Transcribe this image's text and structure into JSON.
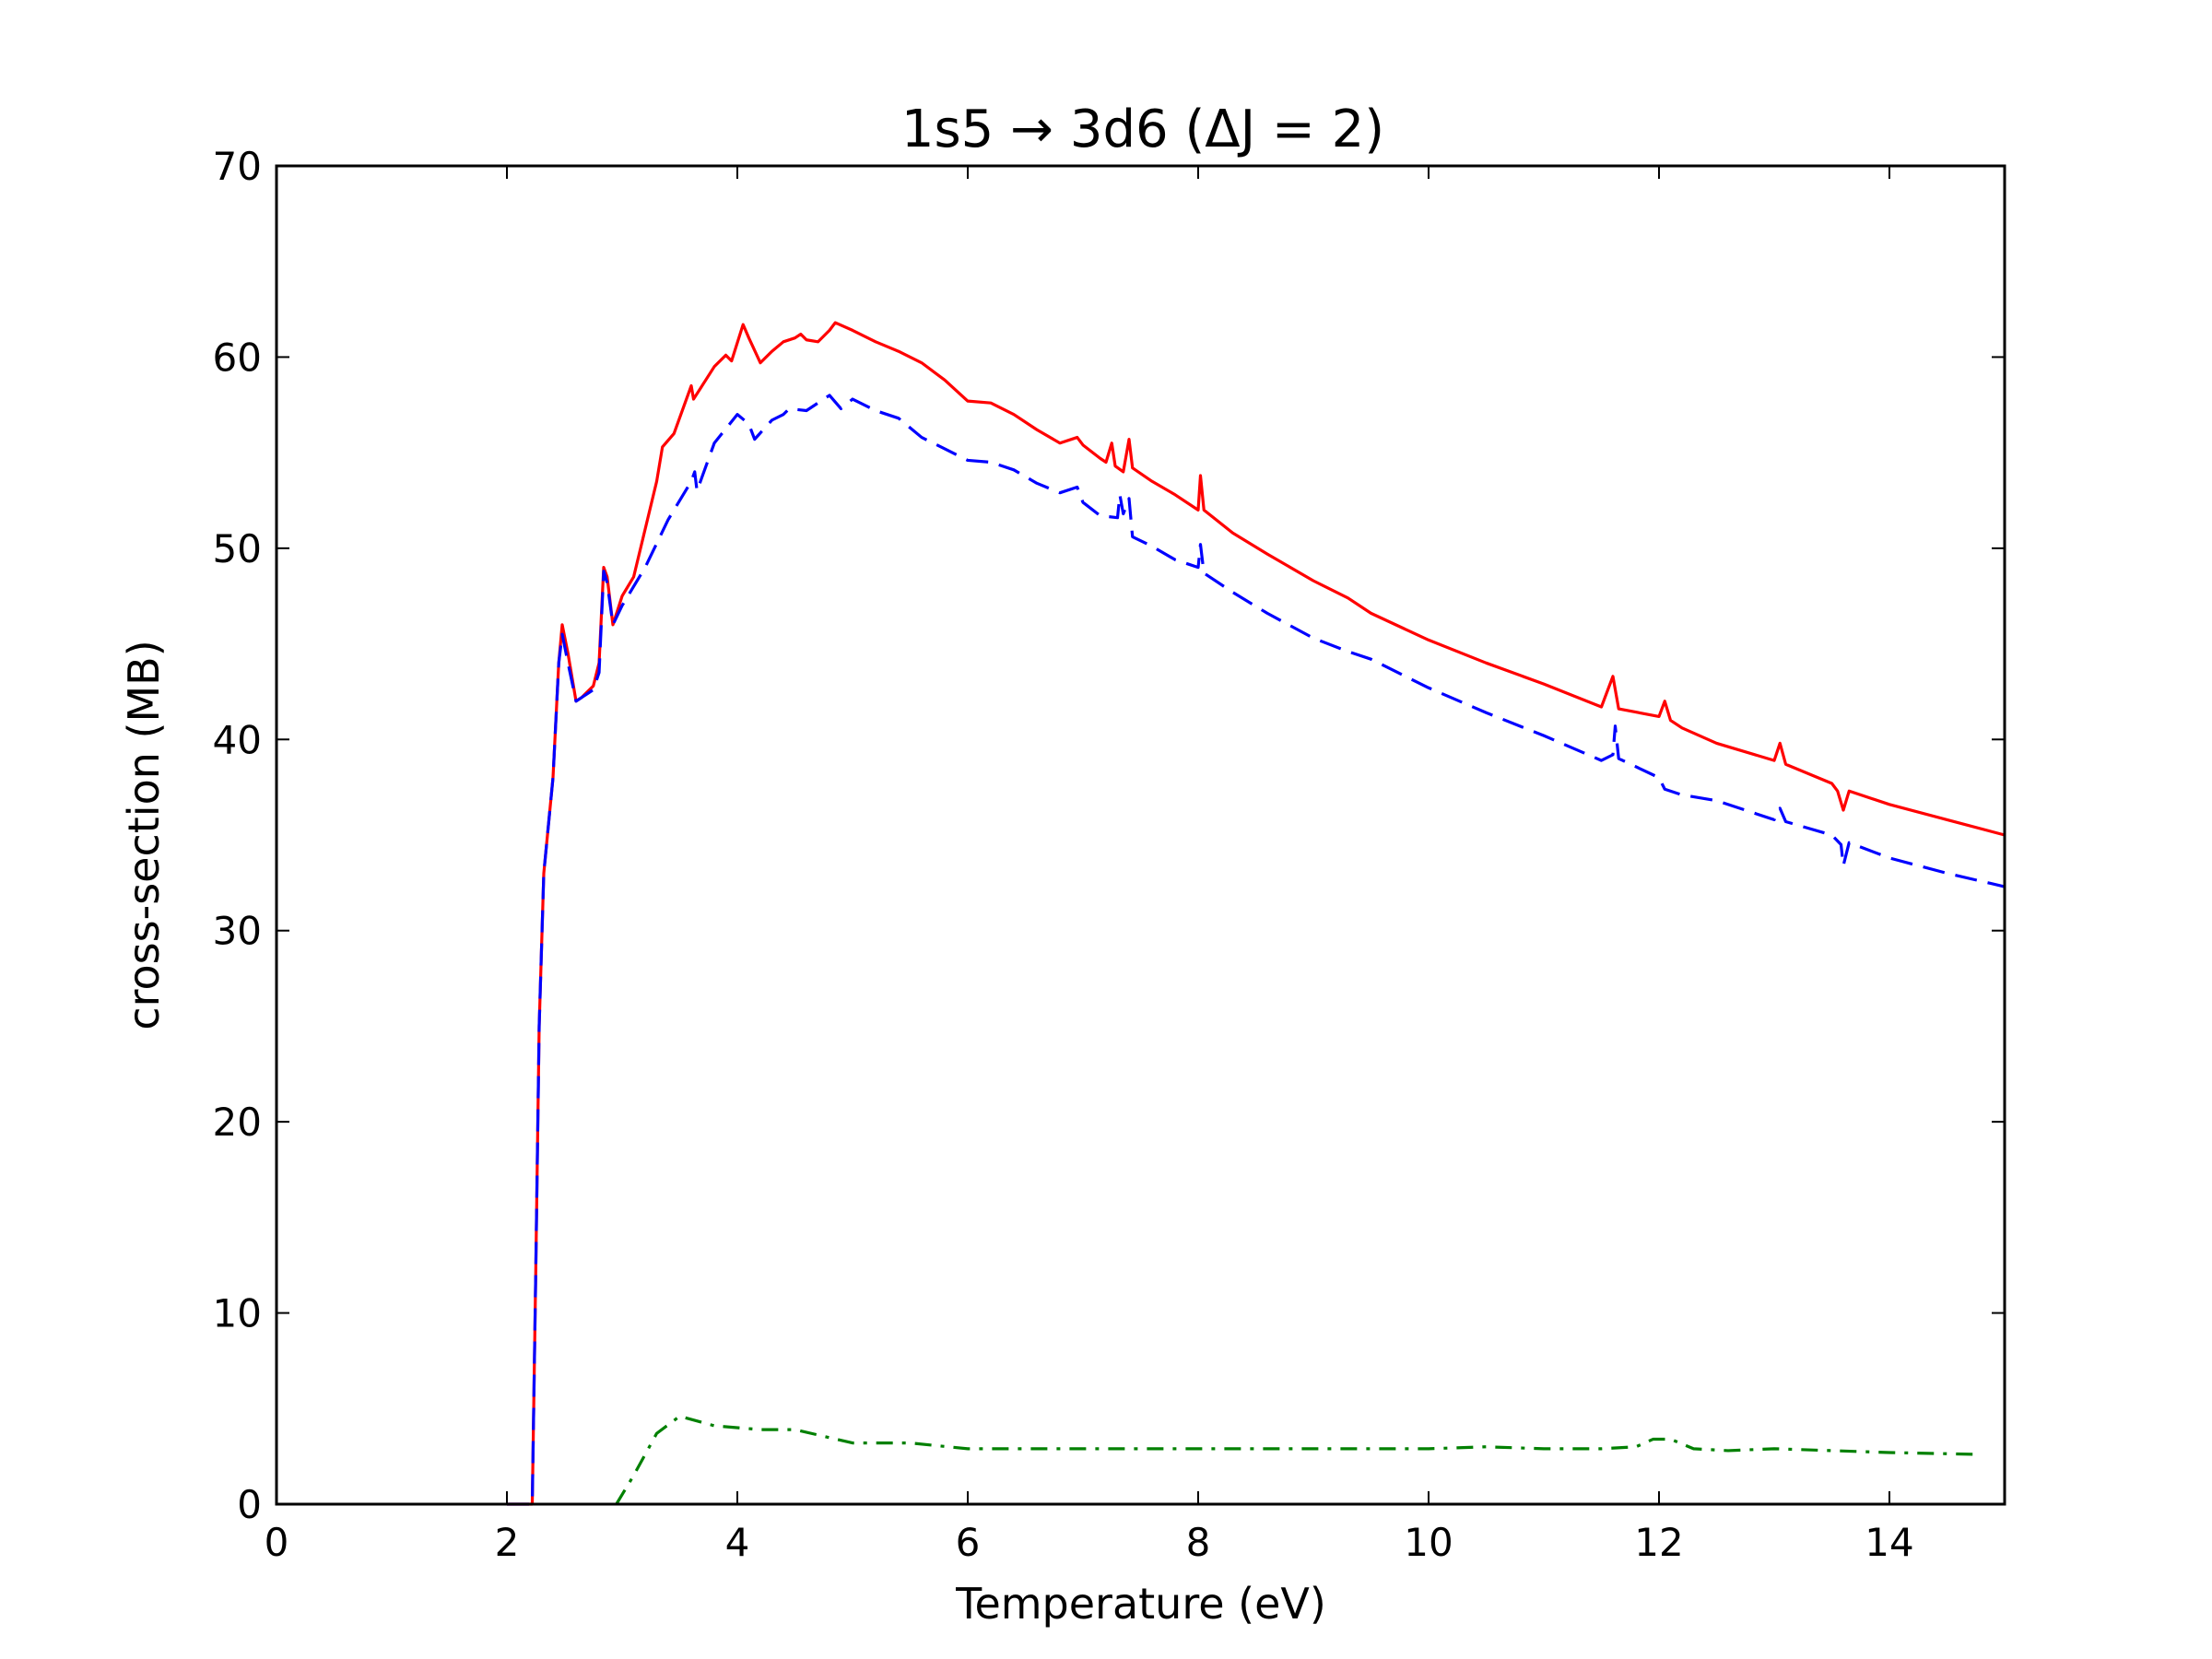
{
  "chart_data": {
    "type": "line",
    "title": "1s5 → 3d6  (ΔJ = 2)",
    "xlabel": "Temperature (eV)",
    "ylabel": "cross-section (MB)",
    "xlim": [
      0,
      15
    ],
    "ylim": [
      0,
      70
    ],
    "xticks": [
      "0",
      "2",
      "4",
      "6",
      "8",
      "10",
      "12",
      "14"
    ],
    "yticks": [
      "0",
      "10",
      "20",
      "30",
      "40",
      "50",
      "60",
      "70"
    ],
    "grid": false,
    "legend": "none",
    "series": [
      {
        "color": "#ff0000",
        "style": "solid",
        "points": [
          [
            2.0,
            0.0
          ],
          [
            2.22,
            0.0
          ],
          [
            2.25,
            12.0
          ],
          [
            2.28,
            25.0
          ],
          [
            2.32,
            33.0
          ],
          [
            2.4,
            38.0
          ],
          [
            2.45,
            44.0
          ],
          [
            2.48,
            46.0
          ],
          [
            2.53,
            44.5
          ],
          [
            2.6,
            42.0
          ],
          [
            2.65,
            42.2
          ],
          [
            2.75,
            42.8
          ],
          [
            2.8,
            44.0
          ],
          [
            2.84,
            49.0
          ],
          [
            2.87,
            48.5
          ],
          [
            2.92,
            46.0
          ],
          [
            3.0,
            47.5
          ],
          [
            3.1,
            48.5
          ],
          [
            3.2,
            51.0
          ],
          [
            3.3,
            53.5
          ],
          [
            3.35,
            55.3
          ],
          [
            3.45,
            56.0
          ],
          [
            3.6,
            58.5
          ],
          [
            3.62,
            57.8
          ],
          [
            3.8,
            59.5
          ],
          [
            3.9,
            60.1
          ],
          [
            3.95,
            59.8
          ],
          [
            4.05,
            61.7
          ],
          [
            4.1,
            61.0
          ],
          [
            4.2,
            59.7
          ],
          [
            4.3,
            60.3
          ],
          [
            4.4,
            60.8
          ],
          [
            4.5,
            61.0
          ],
          [
            4.55,
            61.2
          ],
          [
            4.6,
            60.9
          ],
          [
            4.7,
            60.8
          ],
          [
            4.8,
            61.4
          ],
          [
            4.85,
            61.8
          ],
          [
            5.0,
            61.4
          ],
          [
            5.2,
            60.8
          ],
          [
            5.4,
            60.3
          ],
          [
            5.6,
            59.7
          ],
          [
            5.8,
            58.8
          ],
          [
            6.0,
            57.7
          ],
          [
            6.2,
            57.6
          ],
          [
            6.4,
            57.0
          ],
          [
            6.6,
            56.2
          ],
          [
            6.8,
            55.5
          ],
          [
            6.95,
            55.8
          ],
          [
            7.0,
            55.4
          ],
          [
            7.15,
            54.7
          ],
          [
            7.2,
            54.5
          ],
          [
            7.25,
            55.5
          ],
          [
            7.28,
            54.3
          ],
          [
            7.35,
            54.0
          ],
          [
            7.4,
            55.7
          ],
          [
            7.43,
            54.2
          ],
          [
            7.6,
            53.5
          ],
          [
            7.8,
            52.8
          ],
          [
            8.0,
            52.0
          ],
          [
            8.02,
            53.8
          ],
          [
            8.05,
            52.0
          ],
          [
            8.3,
            50.8
          ],
          [
            8.6,
            49.7
          ],
          [
            9.0,
            48.3
          ],
          [
            9.3,
            47.4
          ],
          [
            9.5,
            46.6
          ],
          [
            10.0,
            45.2
          ],
          [
            10.5,
            44.0
          ],
          [
            11.0,
            42.9
          ],
          [
            11.5,
            41.7
          ],
          [
            11.6,
            43.3
          ],
          [
            11.65,
            41.6
          ],
          [
            12.0,
            41.2
          ],
          [
            12.05,
            42.0
          ],
          [
            12.1,
            41.0
          ],
          [
            12.2,
            40.6
          ],
          [
            12.5,
            39.8
          ],
          [
            13.0,
            38.9
          ],
          [
            13.05,
            39.8
          ],
          [
            13.1,
            38.7
          ],
          [
            13.5,
            37.7
          ],
          [
            13.55,
            37.3
          ],
          [
            13.6,
            36.3
          ],
          [
            13.65,
            37.3
          ],
          [
            14.0,
            36.6
          ],
          [
            14.5,
            35.8
          ],
          [
            15.0,
            35.0
          ]
        ]
      },
      {
        "color": "#0000ff",
        "style": "dashed",
        "points": [
          [
            2.0,
            0.0
          ],
          [
            2.22,
            0.0
          ],
          [
            2.25,
            12.0
          ],
          [
            2.28,
            25.0
          ],
          [
            2.32,
            33.0
          ],
          [
            2.4,
            38.0
          ],
          [
            2.45,
            44.0
          ],
          [
            2.48,
            45.5
          ],
          [
            2.53,
            44.0
          ],
          [
            2.6,
            42.0
          ],
          [
            2.65,
            42.2
          ],
          [
            2.75,
            42.6
          ],
          [
            2.8,
            43.5
          ],
          [
            2.84,
            48.8
          ],
          [
            2.87,
            48.2
          ],
          [
            2.92,
            46.0
          ],
          [
            3.0,
            47.0
          ],
          [
            3.1,
            48.0
          ],
          [
            3.2,
            49.0
          ],
          [
            3.4,
            51.5
          ],
          [
            3.6,
            53.5
          ],
          [
            3.63,
            54.0
          ],
          [
            3.65,
            53.0
          ],
          [
            3.8,
            55.5
          ],
          [
            4.0,
            57.0
          ],
          [
            4.1,
            56.5
          ],
          [
            4.15,
            55.7
          ],
          [
            4.3,
            56.7
          ],
          [
            4.4,
            57.0
          ],
          [
            4.45,
            57.3
          ],
          [
            4.6,
            57.2
          ],
          [
            4.8,
            58.0
          ],
          [
            4.9,
            57.3
          ],
          [
            5.0,
            57.8
          ],
          [
            5.2,
            57.2
          ],
          [
            5.4,
            56.8
          ],
          [
            5.6,
            55.8
          ],
          [
            5.8,
            55.2
          ],
          [
            6.0,
            54.6
          ],
          [
            6.2,
            54.5
          ],
          [
            6.4,
            54.1
          ],
          [
            6.6,
            53.4
          ],
          [
            6.8,
            52.9
          ],
          [
            6.95,
            53.2
          ],
          [
            7.0,
            52.4
          ],
          [
            7.15,
            51.7
          ],
          [
            7.3,
            51.6
          ],
          [
            7.32,
            52.8
          ],
          [
            7.35,
            51.8
          ],
          [
            7.4,
            52.6
          ],
          [
            7.43,
            50.6
          ],
          [
            7.6,
            50.1
          ],
          [
            7.8,
            49.4
          ],
          [
            8.0,
            49.0
          ],
          [
            8.02,
            50.2
          ],
          [
            8.05,
            48.7
          ],
          [
            8.3,
            47.7
          ],
          [
            8.6,
            46.6
          ],
          [
            9.0,
            45.3
          ],
          [
            9.3,
            44.6
          ],
          [
            9.5,
            44.2
          ],
          [
            10.0,
            42.7
          ],
          [
            10.5,
            41.4
          ],
          [
            11.0,
            40.2
          ],
          [
            11.5,
            38.9
          ],
          [
            11.6,
            39.2
          ],
          [
            11.62,
            40.7
          ],
          [
            11.65,
            39.0
          ],
          [
            12.0,
            38.0
          ],
          [
            12.05,
            37.4
          ],
          [
            12.2,
            37.1
          ],
          [
            12.5,
            36.8
          ],
          [
            13.0,
            35.8
          ],
          [
            13.05,
            36.4
          ],
          [
            13.1,
            35.7
          ],
          [
            13.5,
            35.0
          ],
          [
            13.58,
            34.5
          ],
          [
            13.6,
            33.4
          ],
          [
            13.65,
            34.6
          ],
          [
            14.0,
            33.8
          ],
          [
            14.5,
            33.0
          ],
          [
            15.0,
            32.3
          ]
        ]
      },
      {
        "color": "#008000",
        "style": "dash-dot",
        "points": [
          [
            2.95,
            0.0
          ],
          [
            3.1,
            1.5
          ],
          [
            3.3,
            3.7
          ],
          [
            3.5,
            4.6
          ],
          [
            3.8,
            4.1
          ],
          [
            4.2,
            3.9
          ],
          [
            4.5,
            3.9
          ],
          [
            5.0,
            3.2
          ],
          [
            5.5,
            3.2
          ],
          [
            6.0,
            2.9
          ],
          [
            6.5,
            2.9
          ],
          [
            7.0,
            2.9
          ],
          [
            7.5,
            2.9
          ],
          [
            8.0,
            2.9
          ],
          [
            9.0,
            2.9
          ],
          [
            10.0,
            2.9
          ],
          [
            10.5,
            3.0
          ],
          [
            11.0,
            2.9
          ],
          [
            11.5,
            2.9
          ],
          [
            11.8,
            3.0
          ],
          [
            11.95,
            3.4
          ],
          [
            12.1,
            3.4
          ],
          [
            12.3,
            2.9
          ],
          [
            12.6,
            2.8
          ],
          [
            13.0,
            2.9
          ],
          [
            13.5,
            2.8
          ],
          [
            14.0,
            2.7
          ],
          [
            14.8,
            2.6
          ]
        ]
      }
    ]
  }
}
